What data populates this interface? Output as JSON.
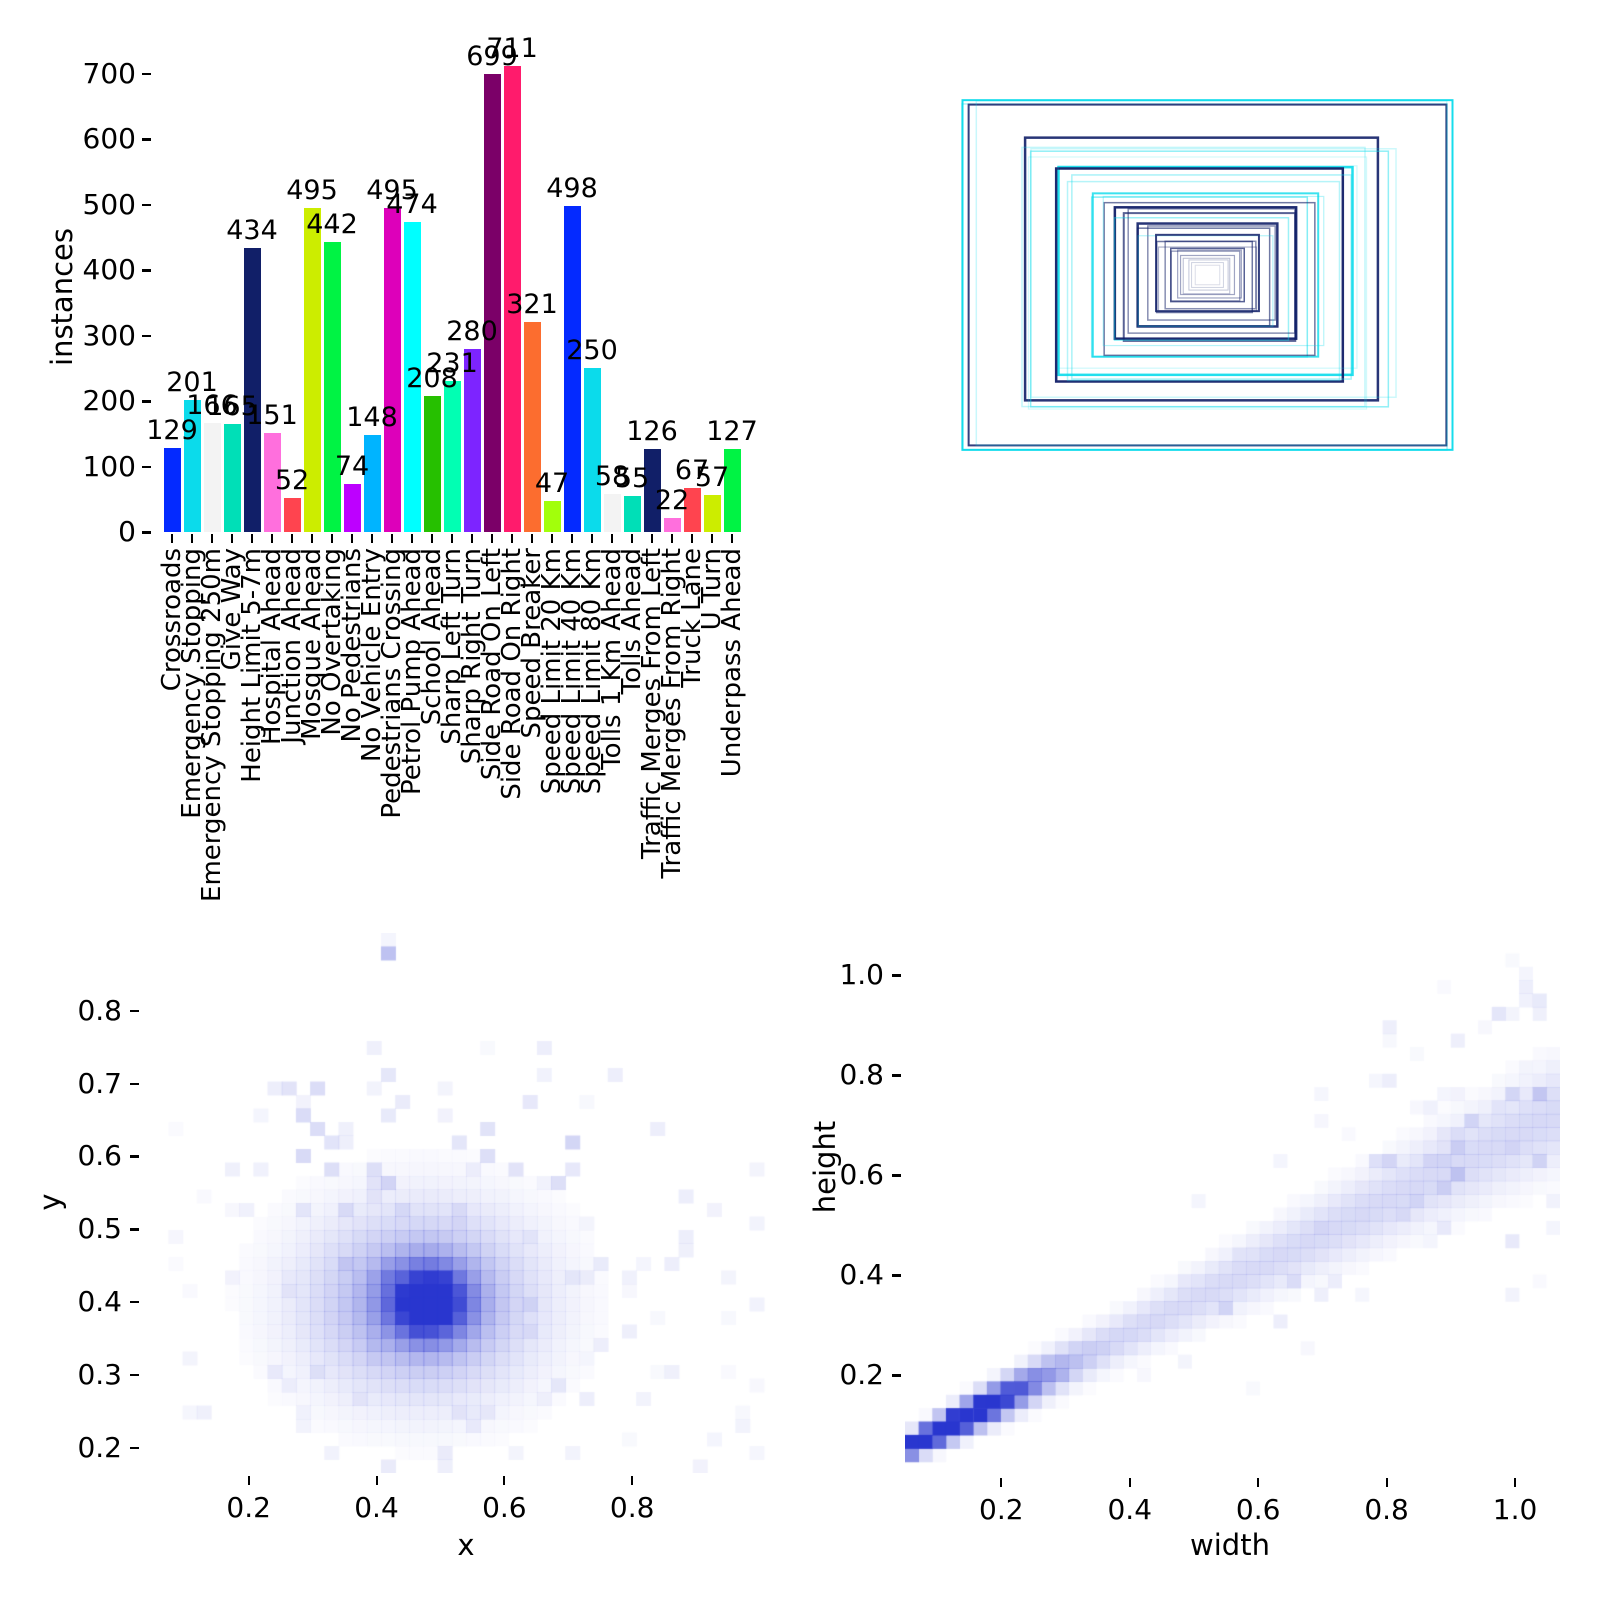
{
  "figure": {
    "background": "#ffffff",
    "description": "dataset labels correlogram: class instances bar chart, bounding-box overlay, x-y heatmap, width-height heatmap"
  },
  "chart_data": [
    {
      "type": "bar",
      "title": "",
      "xlabel": "",
      "ylabel": "instances",
      "yticks": [
        0,
        100,
        200,
        300,
        400,
        500,
        600,
        700
      ],
      "ylim": [
        0,
        740
      ],
      "categories": [
        "Crossroads",
        "Emergency Stopping",
        "Emergency Stopping 250m",
        "Give Way",
        "Height Limit 5-7m",
        "Hospital Ahead",
        "Junction Ahead",
        "Mosque Ahead",
        "No Overtaking",
        "No Pedestrians",
        "No Vehicle Entry",
        "Pedestrians Crossing",
        "Petrol Pump Ahead",
        "School Ahead",
        "Sharp Left Turn",
        "Sharp Right Turn",
        "Side Road On Left",
        "Side Road On Right",
        "Speed Breaker",
        "Speed Limit 20 Km",
        "Speed Limit 40 Km",
        "Speed Limit 80 Km",
        "Tolls 1 Km Ahead",
        "Tolls Ahead",
        "Traffic Merges From Left",
        "Traffic Merges From Right",
        "Truck Lane",
        "U Turn",
        "Underpass Ahead"
      ],
      "values": [
        129,
        201,
        166,
        165,
        434,
        151,
        52,
        495,
        442,
        74,
        148,
        495,
        474,
        208,
        231,
        280,
        699,
        711,
        321,
        47,
        498,
        250,
        58,
        55,
        126,
        22,
        67,
        57,
        127
      ],
      "palette": [
        "#042AFF",
        "#0BDBEB",
        "#F3F3F3",
        "#00DFB7",
        "#111F68",
        "#FF6FDD",
        "#FF444F",
        "#CCED00",
        "#00F344",
        "#BD00FF",
        "#00B4FF",
        "#DD00BA",
        "#00FFFF",
        "#26C000",
        "#01FFB3",
        "#7D24FF",
        "#7B0068",
        "#FF1B6C",
        "#FC6D2F",
        "#A2FF0B"
      ],
      "grid": false,
      "legend": "none"
    },
    {
      "type": "boxes-overlay",
      "title": "",
      "colors": {
        "n": "#111F68",
        "c": "#0BDBEB"
      },
      "rects": [
        [
          1.0,
          0.985,
          0,
          0,
          "c",
          0.95,
          2
        ],
        [
          0.99,
          0.975,
          -3,
          2,
          "c",
          0.35,
          1.5
        ],
        [
          0.975,
          0.96,
          0,
          0,
          "n",
          0.85,
          2
        ],
        [
          0.96,
          0.97,
          4,
          -2,
          "c",
          0.22,
          1.5
        ],
        [
          0.72,
          0.74,
          -6,
          -6,
          "n",
          0.9,
          2.5
        ],
        [
          0.73,
          0.72,
          2,
          4,
          "c",
          0.45,
          1.5
        ],
        [
          0.7,
          0.73,
          -14,
          2,
          "c",
          0.25,
          1.5
        ],
        [
          0.745,
          0.7,
          6,
          -2,
          "c",
          0.2,
          1.5
        ],
        [
          0.69,
          0.71,
          -10,
          8,
          "c",
          0.18,
          1.2
        ],
        [
          0.6,
          0.585,
          -2,
          -4,
          "c",
          0.9,
          2.5
        ],
        [
          0.585,
          0.6,
          -8,
          0,
          "n",
          0.95,
          2.5
        ],
        [
          0.57,
          0.575,
          4,
          2,
          "c",
          0.35,
          1.5
        ],
        [
          0.555,
          0.56,
          -4,
          6,
          "c",
          0.3,
          1.5
        ],
        [
          0.61,
          0.57,
          0,
          -8,
          "c",
          0.2,
          1.2
        ],
        [
          0.46,
          0.46,
          -2,
          0,
          "c",
          0.8,
          2
        ],
        [
          0.44,
          0.45,
          -8,
          2,
          "c",
          0.5,
          1.5
        ],
        [
          0.43,
          0.43,
          2,
          4,
          "n",
          0.6,
          1.5
        ],
        [
          0.45,
          0.42,
          6,
          -4,
          "c",
          0.3,
          1.2
        ],
        [
          0.37,
          0.37,
          -2,
          -2,
          "n",
          0.95,
          2.5
        ],
        [
          0.35,
          0.36,
          2,
          2,
          "n",
          0.7,
          2
        ],
        [
          0.355,
          0.345,
          -6,
          4,
          "c",
          0.4,
          1.5
        ],
        [
          0.34,
          0.35,
          4,
          -4,
          "n",
          0.5,
          1.5
        ],
        [
          0.285,
          0.29,
          0,
          0,
          "n",
          0.9,
          2.5
        ],
        [
          0.27,
          0.275,
          -4,
          2,
          "n",
          0.6,
          1.5
        ],
        [
          0.26,
          0.265,
          4,
          -2,
          "n",
          0.5,
          1.5
        ],
        [
          0.275,
          0.255,
          -2,
          6,
          "c",
          0.3,
          1.2
        ],
        [
          0.21,
          0.215,
          0,
          -2,
          "n",
          0.85,
          2
        ],
        [
          0.195,
          0.2,
          -3,
          2,
          "n",
          0.6,
          1.5
        ],
        [
          0.185,
          0.19,
          3,
          0,
          "n",
          0.5,
          1.5
        ],
        [
          0.2,
          0.18,
          0,
          4,
          "n",
          0.35,
          1.2
        ],
        [
          0.15,
          0.15,
          0,
          0,
          "n",
          0.7,
          1.5
        ],
        [
          0.14,
          0.14,
          -2,
          1,
          "n",
          0.5,
          1.2
        ],
        [
          0.13,
          0.135,
          2,
          -1,
          "n",
          0.4,
          1.2
        ],
        [
          0.11,
          0.11,
          0,
          0,
          "n",
          0.4,
          1.2
        ],
        [
          0.095,
          0.1,
          -1,
          1,
          "n",
          0.3,
          1
        ],
        [
          0.08,
          0.085,
          1,
          0,
          "n",
          0.25,
          1
        ],
        [
          0.065,
          0.07,
          0,
          0,
          "n",
          0.2,
          1
        ],
        [
          0.05,
          0.055,
          0,
          0,
          "n",
          0.15,
          1
        ]
      ]
    },
    {
      "type": "heatmap",
      "xlabel": "x",
      "ylabel": "y",
      "xticks": [
        0.2,
        0.4,
        0.6,
        0.8
      ],
      "yticks": [
        0.2,
        0.3,
        0.4,
        0.5,
        0.6,
        0.7,
        0.8
      ],
      "xlim": [
        0.03,
        1.05
      ],
      "ylim": [
        0.165,
        0.907
      ],
      "bins": [
        46,
        40
      ],
      "color": "#2936cf",
      "gain": 0.85,
      "seed": 7,
      "gaussians": [
        {
          "cx": 0.48,
          "cy": 0.4,
          "sx": 0.045,
          "sy": 0.035,
          "w": 1.1
        },
        {
          "cx": 0.47,
          "cy": 0.4,
          "sx": 0.12,
          "sy": 0.085,
          "w": 0.5
        },
        {
          "cx": 0.42,
          "cy": 0.885,
          "sx": 0.006,
          "sy": 0.006,
          "w": 0.6
        }
      ],
      "noise": [
        {
          "x0": 0.07,
          "x1": 1.0,
          "y0": 0.17,
          "y1": 0.72,
          "p": 0.08,
          "a": 0.08
        },
        {
          "x0": 0.25,
          "x1": 0.72,
          "y0": 0.5,
          "y1": 0.75,
          "p": 0.1,
          "a": 0.08
        },
        {
          "x0": 0.55,
          "x1": 0.75,
          "y0": 0.6,
          "y1": 0.72,
          "p": 0.12,
          "a": 0.09
        }
      ],
      "summary": "bounding-box centers cluster near x=0.48, y=0.40 with sparse spread over x 0.1-0.95, y 0.17-0.9"
    },
    {
      "type": "heatmap",
      "xlabel": "width",
      "ylabel": "height",
      "xticks": [
        0.2,
        0.4,
        0.6,
        0.8,
        1.0
      ],
      "yticks": [
        0.2,
        0.4,
        0.6,
        0.8,
        1.0
      ],
      "xlim": [
        0.05,
        1.07
      ],
      "ylim": [
        0.0,
        1.07
      ],
      "bins": [
        48,
        40
      ],
      "color": "#2936cf",
      "gain": 0.85,
      "seed": 13,
      "gaussians": [],
      "band": {
        "a": 0.02,
        "b": 0.66,
        "s0": 0.012,
        "s1": 0.055,
        "px": 0.12,
        "pw": 0.09,
        "w1": 1.6,
        "w0": 0.22
      },
      "noise": [
        {
          "x0": 0.5,
          "x1": 1.07,
          "y0": 0.3,
          "y1": 0.8,
          "p": 0.05,
          "a": 0.07
        },
        {
          "x0": 0.75,
          "x1": 1.07,
          "y0": 0.45,
          "y1": 1.05,
          "p": 0.1,
          "a": 0.08
        },
        {
          "x0": 0.95,
          "x1": 1.07,
          "y0": 0.85,
          "y1": 1.05,
          "p": 0.25,
          "a": 0.1
        },
        {
          "x0": 0.25,
          "x1": 0.7,
          "y0": 0.15,
          "y1": 0.4,
          "p": 0.04,
          "a": 0.05
        }
      ],
      "summary": "height correlates linearly with width (h ~ 0.66*w), densest at small boxes w 0.1-0.3"
    }
  ]
}
